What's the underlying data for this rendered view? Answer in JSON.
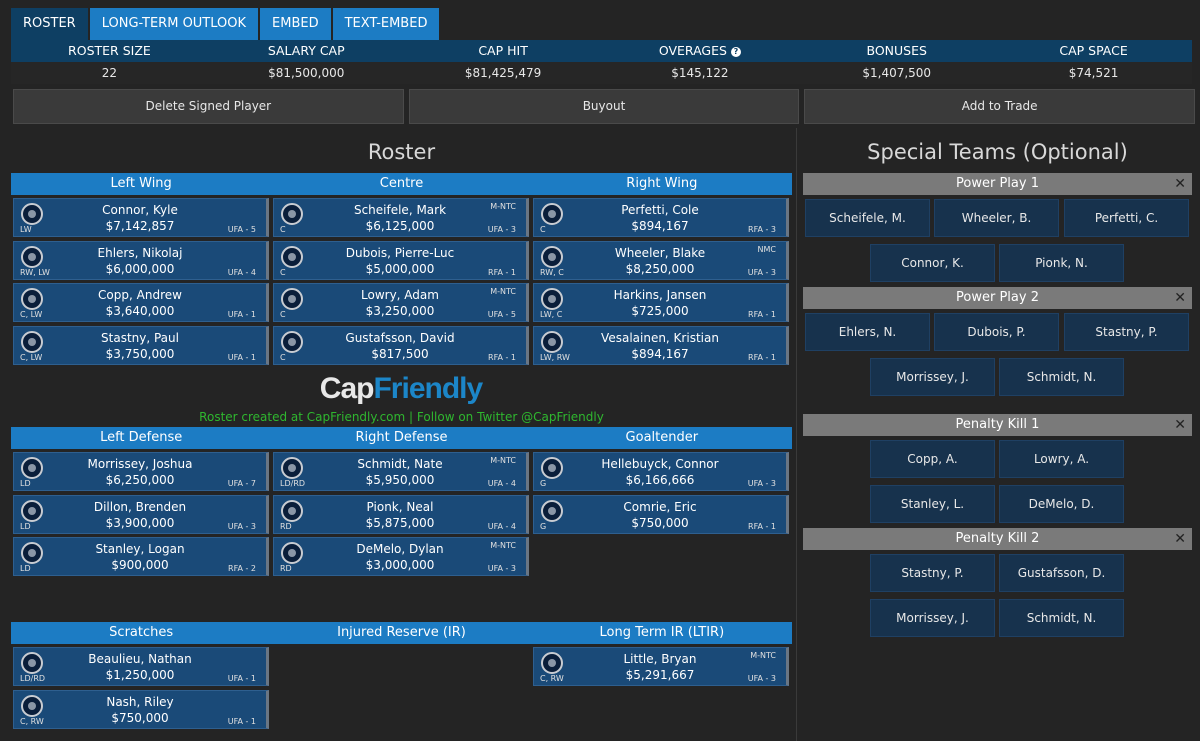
{
  "tabs": [
    "ROSTER",
    "LONG-TERM OUTLOOK",
    "EMBED",
    "TEXT-EMBED"
  ],
  "summary": {
    "headers": [
      "ROSTER SIZE",
      "SALARY CAP",
      "CAP HIT",
      "OVERAGES",
      "BONUSES",
      "CAP SPACE"
    ],
    "values": [
      "22",
      "$81,500,000",
      "$81,425,479",
      "$145,122",
      "$1,407,500",
      "$74,521"
    ],
    "help_glyph": "?"
  },
  "actions": [
    "Delete Signed Player",
    "Buyout",
    "Add to Trade"
  ],
  "roster_title": "Roster",
  "special_title": "Special Teams (Optional)",
  "forward_headers": [
    "Left Wing",
    "Centre",
    "Right Wing"
  ],
  "defense_headers": [
    "Left Defense",
    "Right Defense",
    "Goaltender"
  ],
  "reserve_headers": [
    "Scratches",
    "Injured Reserve (IR)",
    "Long Term IR (LTIR)"
  ],
  "players": {
    "lw": [
      {
        "name": "Connor, Kyle",
        "salary": "$7,142,857",
        "pos": "LW",
        "status": "UFA - 5",
        "clause": ""
      },
      {
        "name": "Ehlers, Nikolaj",
        "salary": "$6,000,000",
        "pos": "RW, LW",
        "status": "UFA - 4",
        "clause": ""
      },
      {
        "name": "Copp, Andrew",
        "salary": "$3,640,000",
        "pos": "C, LW",
        "status": "UFA - 1",
        "clause": ""
      },
      {
        "name": "Stastny, Paul",
        "salary": "$3,750,000",
        "pos": "C, LW",
        "status": "UFA - 1",
        "clause": ""
      }
    ],
    "c": [
      {
        "name": "Scheifele, Mark",
        "salary": "$6,125,000",
        "pos": "C",
        "status": "UFA - 3",
        "clause": "M-NTC"
      },
      {
        "name": "Dubois, Pierre-Luc",
        "salary": "$5,000,000",
        "pos": "C",
        "status": "RFA - 1",
        "clause": ""
      },
      {
        "name": "Lowry, Adam",
        "salary": "$3,250,000",
        "pos": "C",
        "status": "UFA - 5",
        "clause": "M-NTC"
      },
      {
        "name": "Gustafsson, David",
        "salary": "$817,500",
        "pos": "C",
        "status": "RFA - 1",
        "clause": ""
      }
    ],
    "rw": [
      {
        "name": "Perfetti, Cole",
        "salary": "$894,167",
        "pos": "C",
        "status": "RFA - 3",
        "clause": ""
      },
      {
        "name": "Wheeler, Blake",
        "salary": "$8,250,000",
        "pos": "RW, C",
        "status": "UFA - 3",
        "clause": "NMC"
      },
      {
        "name": "Harkins, Jansen",
        "salary": "$725,000",
        "pos": "LW, C",
        "status": "RFA - 1",
        "clause": ""
      },
      {
        "name": "Vesalainen, Kristian",
        "salary": "$894,167",
        "pos": "LW, RW",
        "status": "RFA - 1",
        "clause": ""
      }
    ],
    "ld": [
      {
        "name": "Morrissey, Joshua",
        "salary": "$6,250,000",
        "pos": "LD",
        "status": "UFA - 7",
        "clause": ""
      },
      {
        "name": "Dillon, Brenden",
        "salary": "$3,900,000",
        "pos": "LD",
        "status": "UFA - 3",
        "clause": ""
      },
      {
        "name": "Stanley, Logan",
        "salary": "$900,000",
        "pos": "LD",
        "status": "RFA - 2",
        "clause": ""
      }
    ],
    "rd": [
      {
        "name": "Schmidt, Nate",
        "salary": "$5,950,000",
        "pos": "LD/RD",
        "status": "UFA - 4",
        "clause": "M-NTC"
      },
      {
        "name": "Pionk, Neal",
        "salary": "$5,875,000",
        "pos": "RD",
        "status": "UFA - 4",
        "clause": ""
      },
      {
        "name": "DeMelo, Dylan",
        "salary": "$3,000,000",
        "pos": "RD",
        "status": "UFA - 3",
        "clause": "M-NTC"
      }
    ],
    "g": [
      {
        "name": "Hellebuyck, Connor",
        "salary": "$6,166,666",
        "pos": "G",
        "status": "UFA - 3",
        "clause": ""
      },
      {
        "name": "Comrie, Eric",
        "salary": "$750,000",
        "pos": "G",
        "status": "RFA - 1",
        "clause": ""
      }
    ],
    "scratches": [
      {
        "name": "Beaulieu, Nathan",
        "salary": "$1,250,000",
        "pos": "LD/RD",
        "status": "UFA - 1",
        "clause": ""
      },
      {
        "name": "Nash, Riley",
        "salary": "$750,000",
        "pos": "C, RW",
        "status": "UFA - 1",
        "clause": ""
      }
    ],
    "ltir": [
      {
        "name": "Little, Bryan",
        "salary": "$5,291,667",
        "pos": "C, RW",
        "status": "UFA - 3",
        "clause": "M-NTC"
      }
    ]
  },
  "watermark": {
    "cap": "Cap",
    "friendly": "Friendly"
  },
  "credit": "Roster created at CapFriendly.com | Follow on Twitter @CapFriendly",
  "special_teams": [
    {
      "title": "Power Play 1",
      "row1": [
        "Scheifele, M.",
        "Wheeler, B.",
        "Perfetti, C."
      ],
      "row2": [
        "Connor, K.",
        "Pionk, N."
      ]
    },
    {
      "title": "Power Play 2",
      "row1": [
        "Ehlers, N.",
        "Dubois, P.",
        "Stastny, P."
      ],
      "row2": [
        "Morrissey, J.",
        "Schmidt, N."
      ]
    },
    {
      "title": "Penalty Kill 1",
      "row1": [
        "Copp, A.",
        "Lowry, A."
      ],
      "row2": [
        "Stanley, L.",
        "DeMelo, D."
      ]
    },
    {
      "title": "Penalty Kill 2",
      "row1": [
        "Stastny, P.",
        "Gustafsson, D."
      ],
      "row2": [
        "Morrissey, J.",
        "Schmidt, N."
      ]
    }
  ],
  "close_glyph": "✕",
  "colors": {
    "accent": "#1c7cc4",
    "dark_header": "#0e3f63",
    "card": "#1a4a78",
    "credit": "#2fb72f"
  }
}
